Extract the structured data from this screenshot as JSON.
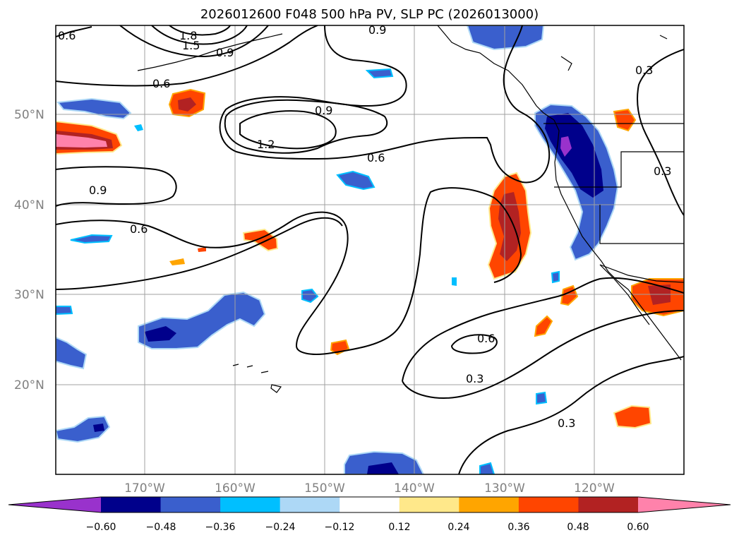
{
  "title": "2026012600 F048 500 hPa PV, SLP PC (2026013000)",
  "lat_labels": [
    "50°N",
    "40°N",
    "30°N",
    "20°N"
  ],
  "lon_labels": [
    "170°W",
    "160°W",
    "150°W",
    "140°W",
    "130°W",
    "120°W"
  ],
  "contour_labels": [
    "0.6",
    "1.8",
    "1.5",
    "0.9",
    "0.9",
    "0.6",
    "0.9",
    "1.2",
    "0.6",
    "0.9",
    "0.6",
    "0.3",
    "0.3",
    "0.6",
    "0.3",
    "0.3"
  ],
  "colorbar": {
    "tick_labels": [
      "−0.60",
      "−0.48",
      "−0.36",
      "−0.24",
      "−0.12",
      "0.12",
      "0.24",
      "0.36",
      "0.48",
      "0.60"
    ],
    "colors": [
      "#9932cc",
      "#00008b",
      "#3a5fcd",
      "#00bfff",
      "#add8f6",
      "#ffffff",
      "#ffe88a",
      "#ffa500",
      "#ff4500",
      "#b22222",
      "#ff82ab"
    ]
  },
  "fill_colors": {
    "neg_deep": "#00008b",
    "neg_mid": "#3a5fcd",
    "neg_light": "#00bfff",
    "neg_pale": "#add8f6",
    "neg_extreme": "#9932cc",
    "pos_pale": "#ffe88a",
    "pos_light": "#ffa500",
    "pos_mid": "#ff4500",
    "pos_deep": "#b22222",
    "pos_extreme": "#ff82ab"
  }
}
